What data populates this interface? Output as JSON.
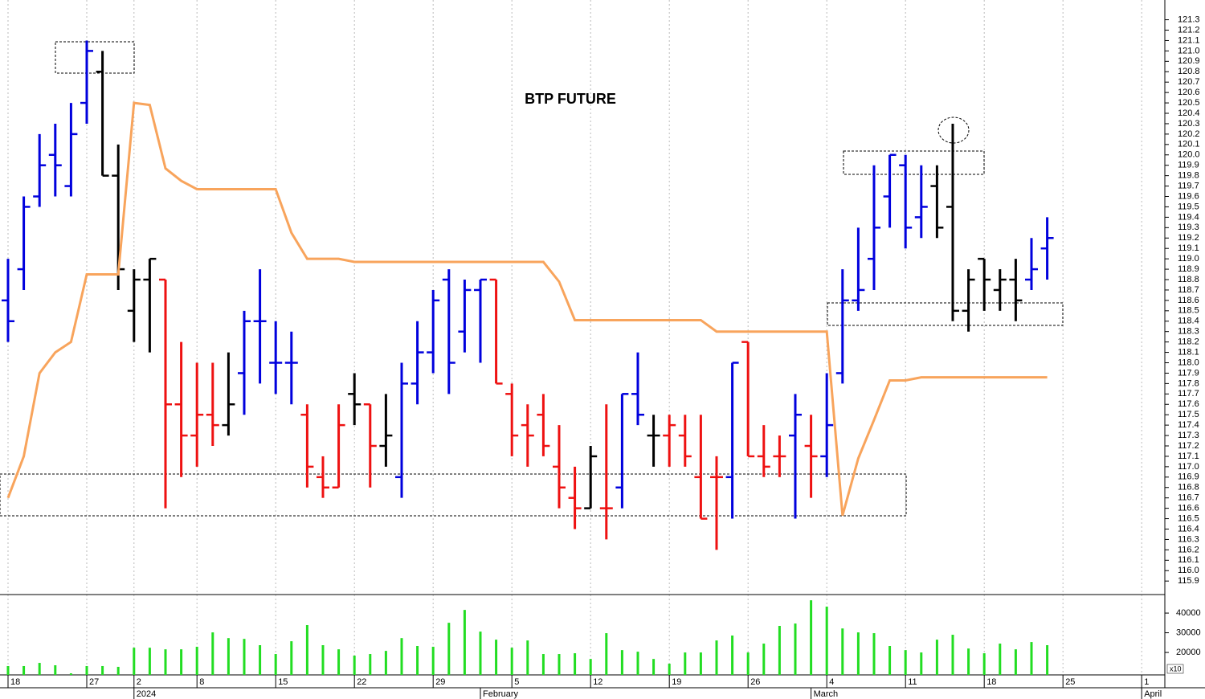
{
  "chart_data": [
    {
      "type": "ohlc",
      "title": "BTP FUTURE",
      "x": [
        0,
        1,
        2,
        3,
        4,
        5,
        6,
        7,
        8,
        9,
        10,
        11,
        12,
        13,
        14,
        15,
        16,
        17,
        18,
        19,
        20,
        21,
        22,
        23,
        24,
        25,
        26,
        27,
        28,
        29,
        30,
        31,
        32,
        33,
        34,
        35,
        36,
        37,
        38,
        39,
        40,
        41,
        42,
        43,
        44,
        45,
        46,
        47,
        48,
        49,
        50,
        51,
        52,
        53,
        54,
        55,
        56,
        57,
        58,
        59,
        60,
        61,
        62,
        63,
        64,
        65,
        66
      ],
      "xlim": [
        -0.51,
        73.47
      ],
      "ylim": [
        115.77,
        121.49
      ],
      "yticks": [
        115.9,
        {
          "value": 116,
          "label": "116.0"
        },
        116.1,
        116.2,
        116.3,
        116.4,
        116.5,
        116.6,
        116.7,
        116.8,
        116.9,
        {
          "value": 117,
          "label": "117.0"
        },
        117.1,
        117.2,
        117.3,
        117.4,
        117.5,
        117.6,
        117.7,
        117.8,
        117.9,
        {
          "value": 118,
          "label": "118.0"
        },
        118.1,
        118.2,
        118.3,
        118.4,
        118.5,
        118.6,
        118.7,
        118.8,
        118.9,
        {
          "value": 119,
          "label": "119.0"
        },
        119.1,
        119.2,
        119.3,
        119.4,
        119.5,
        119.6,
        119.7,
        119.8,
        119.9,
        {
          "value": 120,
          "label": "120.0"
        },
        120.1,
        120.2,
        120.3,
        120.4,
        120.5,
        120.6,
        120.7,
        120.8,
        120.9,
        {
          "value": 121,
          "label": "121.0"
        },
        121.1,
        121.2,
        121.3
      ],
      "open": [
        118.6,
        118.9,
        119.6,
        120.0,
        119.7,
        120.5,
        120.8,
        119.8,
        118.5,
        118.8,
        118.8,
        117.6,
        117.3,
        117.5,
        117.4,
        117.9,
        118.4,
        118.0,
        118.0,
        117.5,
        116.9,
        116.8,
        117.7,
        117.6,
        117.2,
        116.9,
        117.8,
        118.1,
        118.8,
        118.3,
        118.7,
        118.8,
        117.7,
        117.4,
        117.5,
        117.0,
        116.7,
        116.6,
        116.6,
        116.8,
        117.7,
        117.3,
        117.3,
        117.3,
        116.9,
        116.9,
        116.9,
        118.2,
        117.1,
        117.1,
        117.3,
        117.2,
        117.1,
        117.9,
        118.6,
        119.0,
        119.6,
        119.9,
        119.4,
        119.7,
        119.5,
        118.5,
        119.0,
        118.7,
        118.8,
        118.8,
        119.1
      ],
      "high": [
        119.0,
        119.6,
        120.2,
        120.3,
        120.5,
        121.1,
        121.0,
        120.1,
        118.9,
        119.0,
        118.8,
        118.2,
        118.0,
        118.0,
        118.1,
        118.5,
        118.9,
        118.4,
        118.3,
        117.6,
        117.1,
        117.6,
        117.9,
        117.6,
        117.7,
        118.0,
        118.4,
        118.7,
        118.9,
        118.8,
        118.8,
        118.8,
        117.8,
        117.6,
        117.7,
        117.4,
        117.0,
        117.2,
        117.6,
        117.7,
        118.1,
        117.5,
        117.5,
        117.5,
        117.5,
        117.1,
        118.0,
        118.2,
        117.4,
        117.3,
        117.7,
        117.5,
        117.9,
        118.9,
        119.3,
        119.9,
        120.0,
        120.0,
        119.9,
        119.9,
        120.3,
        118.9,
        119.0,
        118.9,
        119.0,
        119.2,
        119.4
      ],
      "low": [
        118.2,
        118.7,
        119.5,
        119.6,
        119.6,
        120.3,
        119.8,
        118.7,
        118.2,
        118.1,
        116.6,
        116.9,
        117.0,
        117.2,
        117.3,
        117.5,
        117.8,
        117.7,
        117.6,
        116.8,
        116.7,
        116.8,
        117.4,
        116.8,
        117.0,
        116.7,
        117.6,
        117.9,
        117.7,
        118.1,
        118.0,
        117.8,
        117.1,
        117.0,
        117.1,
        116.6,
        116.4,
        116.6,
        116.3,
        116.6,
        117.4,
        117.0,
        117.0,
        117.0,
        116.5,
        116.2,
        116.5,
        117.1,
        116.9,
        116.9,
        116.5,
        116.7,
        116.9,
        117.8,
        118.5,
        118.7,
        119.3,
        119.1,
        119.2,
        119.2,
        118.4,
        118.3,
        118.5,
        118.5,
        118.4,
        118.7,
        118.8
      ],
      "close": [
        118.4,
        119.5,
        119.9,
        119.9,
        120.2,
        121.0,
        119.8,
        118.9,
        118.8,
        119.0,
        117.6,
        117.3,
        117.5,
        117.4,
        117.6,
        118.4,
        118.4,
        118.0,
        118.0,
        117.0,
        116.8,
        117.4,
        117.6,
        117.2,
        117.3,
        117.8,
        118.1,
        118.6,
        118.0,
        118.7,
        118.8,
        117.8,
        117.3,
        117.3,
        117.2,
        116.8,
        116.6,
        117.1,
        116.6,
        117.7,
        117.5,
        117.3,
        117.4,
        117.1,
        116.5,
        116.9,
        118.0,
        117.1,
        117.0,
        117.1,
        117.5,
        117.1,
        117.4,
        118.6,
        118.7,
        119.3,
        120.0,
        119.3,
        119.5,
        119.3,
        118.5,
        118.8,
        118.8,
        118.8,
        118.6,
        118.9,
        119.2
      ],
      "colors": [
        "#0000dd",
        "#0000dd",
        "#0000dd",
        "#0000dd",
        "#0000dd",
        "#0000dd",
        "#000000",
        "#000000",
        "#000000",
        "#000000",
        "#ee1111",
        "#ee1111",
        "#ee1111",
        "#ee1111",
        "#000000",
        "#0000dd",
        "#0000dd",
        "#0000dd",
        "#0000dd",
        "#ee1111",
        "#ee1111",
        "#ee1111",
        "#000000",
        "#ee1111",
        "#000000",
        "#0000dd",
        "#0000dd",
        "#0000dd",
        "#0000dd",
        "#0000dd",
        "#0000dd",
        "#ee1111",
        "#ee1111",
        "#ee1111",
        "#ee1111",
        "#ee1111",
        "#ee1111",
        "#000000",
        "#ee1111",
        "#0000dd",
        "#0000dd",
        "#000000",
        "#ee1111",
        "#ee1111",
        "#ee1111",
        "#ee1111",
        "#0000dd",
        "#ee1111",
        "#ee1111",
        "#ee1111",
        "#0000dd",
        "#ee1111",
        "#0000dd",
        "#0000dd",
        "#0000dd",
        "#0000dd",
        "#0000dd",
        "#0000dd",
        "#0000dd",
        "#000000",
        "#000000",
        "#000000",
        "#000000",
        "#000000",
        "#000000",
        "#0000dd",
        "#0000dd"
      ],
      "line": {
        "color": "#f8a45c",
        "values": [
          116.7,
          117.1,
          117.9,
          118.1,
          118.2,
          118.85,
          118.85,
          118.85,
          120.5,
          120.48,
          119.87,
          119.75,
          119.67,
          119.67,
          119.67,
          119.67,
          119.67,
          119.67,
          119.25,
          119.0,
          119.0,
          119.0,
          118.97,
          118.97,
          118.97,
          118.97,
          118.97,
          118.97,
          118.97,
          118.97,
          118.97,
          118.97,
          118.97,
          118.97,
          118.97,
          118.78,
          118.41,
          118.41,
          118.41,
          118.41,
          118.41,
          118.41,
          118.41,
          118.41,
          118.41,
          118.3,
          118.3,
          118.3,
          118.3,
          118.3,
          118.3,
          118.3,
          118.3,
          116.53,
          117.08,
          117.45,
          117.83,
          117.83,
          117.86,
          117.86,
          117.86,
          117.86,
          117.86,
          117.86,
          117.86,
          117.86,
          117.86
        ]
      }
    },
    {
      "type": "bar",
      "x": [
        0,
        1,
        2,
        3,
        4,
        5,
        6,
        7,
        8,
        9,
        10,
        11,
        12,
        13,
        14,
        15,
        16,
        17,
        18,
        19,
        20,
        21,
        22,
        23,
        24,
        25,
        26,
        27,
        28,
        29,
        30,
        31,
        32,
        33,
        34,
        35,
        36,
        37,
        38,
        39,
        40,
        41,
        42,
        43,
        44,
        45,
        46,
        47,
        48,
        49,
        50,
        51,
        52,
        53,
        54,
        55,
        56,
        57,
        58,
        59,
        60,
        61,
        62,
        63,
        64,
        65,
        66
      ],
      "xlim": [
        -0.51,
        73.47
      ],
      "values": [
        13100,
        13100,
        14700,
        13500,
        9400,
        13100,
        13100,
        12700,
        22400,
        22400,
        21600,
        21600,
        22900,
        30200,
        27300,
        26900,
        23700,
        19200,
        25700,
        33900,
        23700,
        21600,
        18400,
        19200,
        20800,
        27300,
        23300,
        22900,
        35100,
        41600,
        30600,
        26500,
        22400,
        26100,
        19200,
        19200,
        19600,
        16700,
        29800,
        21200,
        20400,
        16700,
        14300,
        20000,
        20000,
        26100,
        28600,
        20000,
        24500,
        33500,
        34700,
        46500,
        43300,
        32200,
        30200,
        29800,
        23300,
        21200,
        20000,
        26500,
        29000,
        22000,
        19600,
        24500,
        21600,
        25300,
        23700
      ],
      "color": "#22dd22",
      "ylim": [
        8600,
        48600
      ],
      "yticks": [
        20000,
        30000,
        40000
      ],
      "unit_label": "x10",
      "xticks": [
        {
          "value": 0,
          "label": "18"
        },
        {
          "value": 5,
          "label": "27"
        },
        {
          "value": 8,
          "label": "2"
        },
        {
          "value": 12,
          "label": "8"
        },
        {
          "value": 17,
          "label": "15"
        },
        {
          "value": 22,
          "label": "22"
        },
        {
          "value": 27,
          "label": "29"
        },
        {
          "value": 32,
          "label": "5"
        },
        {
          "value": 37,
          "label": "12"
        },
        {
          "value": 42,
          "label": "19"
        },
        {
          "value": 47,
          "label": "26"
        },
        {
          "value": 52,
          "label": "4"
        },
        {
          "value": 57,
          "label": "11"
        },
        {
          "value": 62,
          "label": "18"
        },
        {
          "value": 67,
          "label": "25"
        },
        {
          "value": 72,
          "label": "1"
        }
      ],
      "month_labels": [
        {
          "value": 8,
          "label": "2024"
        },
        {
          "value": 30,
          "label": "February"
        },
        {
          "value": 51,
          "label": "March"
        },
        {
          "value": 72,
          "label": "April"
        }
      ]
    }
  ]
}
